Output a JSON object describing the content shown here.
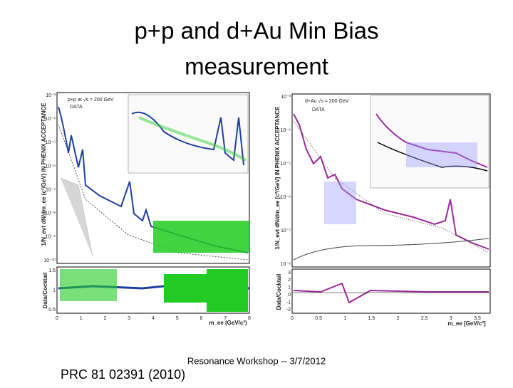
{
  "slide": {
    "title": [
      "p+p and d+Au Min Bias",
      "measurement"
    ],
    "footer": "Resonance Workshop -- 3/7/2012",
    "citation": "PRC 81 02391 (2010)"
  },
  "left_plot": {
    "label": "p+p at √s = 200 GeV",
    "legend": "DATA",
    "y_label": "1/N_evt dN/dm_ee (c²/GeV) IN PHENIX ACCEPTANCE",
    "ratio_label": "Data/Cocktail",
    "x_label": "m_ee (GeV/c²)",
    "x_ticks": [
      "0",
      "1",
      "2",
      "3",
      "4",
      "5",
      "6",
      "7",
      "8"
    ],
    "ratio_ticks": [
      "0.5",
      "1",
      "1.5"
    ],
    "y_ticks": [
      "10⁻³",
      "10⁻⁴",
      "10⁻⁵",
      "10⁻⁶",
      "10⁻⁷",
      "10⁻⁸",
      "10⁻⁹",
      "10⁻¹⁰"
    ]
  },
  "right_plot": {
    "label": "d+Au √s = 200 GeV",
    "legend": "DATA",
    "y_label": "1/N_evt dN/dm_ee [c²/GeV] IN PHENIX ACCEPTANCE",
    "ratio_label": "Data/Cocktail",
    "x_label": "m_ee [GeV/c²]",
    "x_ticks": [
      "0",
      "0.5",
      "1",
      "1.5",
      "2",
      "2.5",
      "3",
      "3.5"
    ],
    "ratio_ticks": [
      "-2",
      "-1",
      "0",
      "1",
      "2",
      "3"
    ],
    "y_ticks": [
      "10⁻³",
      "10⁻⁴",
      "10⁻⁵",
      "10⁻⁶",
      "10⁻⁷",
      "10⁻⁸"
    ]
  }
}
